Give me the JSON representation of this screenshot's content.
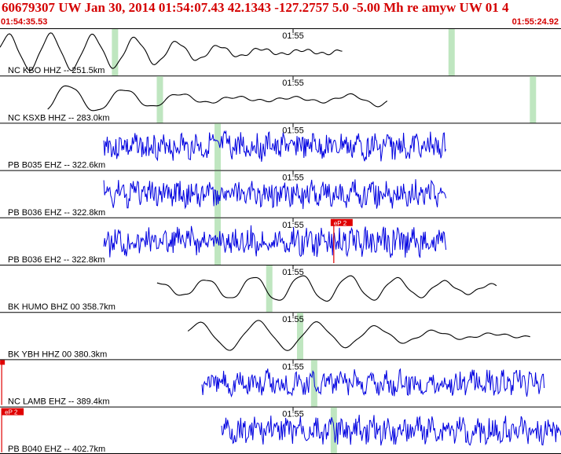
{
  "header": {
    "title": "60679307 UW Jan 30, 2014 01:54:07.43   42.1343 -127.2757  5.0 -5.00 Mh re amyw UW 01   4",
    "start_time": "01:54:35.53",
    "end_time": "01:55:24.92"
  },
  "tick_label": "01:55",
  "colors": {
    "header_text": "#d40000",
    "short_period_trace": "#0000e0",
    "long_period_trace": "#000000",
    "highlight": "#bfe6c0",
    "pick": "#e00000"
  },
  "traces": [
    {
      "label": "NC KBO HHZ -- 251.5km",
      "kind": "long",
      "start": 0.0,
      "end": 0.61,
      "period": 0.075,
      "amp": 0.75,
      "seed": 1,
      "highlights": [
        0.205,
        0.805
      ],
      "pick": null
    },
    {
      "label": "NC KSXB HHZ -- 283.0km",
      "kind": "long",
      "start": 0.085,
      "end": 0.69,
      "period": 0.1,
      "amp": 0.65,
      "seed": 2,
      "highlights": [
        0.285,
        0.95
      ],
      "pick": null
    },
    {
      "label": "PB B035 EHZ -- 322.6km",
      "kind": "short",
      "start": 0.185,
      "end": 0.795,
      "amp": 0.7,
      "seed": 3,
      "highlights": [
        0.388
      ],
      "pick": null
    },
    {
      "label": "PB B036 EHZ -- 322.8km",
      "kind": "short",
      "start": 0.185,
      "end": 0.795,
      "amp": 0.7,
      "seed": 4,
      "highlights": [
        0.388
      ],
      "pick": null
    },
    {
      "label": "PB B036 EH2 -- 322.8km",
      "kind": "short",
      "start": 0.185,
      "end": 0.795,
      "amp": 0.75,
      "seed": 5,
      "highlights": [
        0.388
      ],
      "pick": {
        "label": "eP 2",
        "pos": 0.595
      }
    },
    {
      "label": "BK HUMO BHZ 00 358.7km",
      "kind": "long",
      "start": 0.28,
      "end": 0.885,
      "period": 0.085,
      "amp": 0.55,
      "seed": 6,
      "highlights": [
        0.48
      ],
      "pick": null
    },
    {
      "label": "BK YBH HHZ 00 380.3km",
      "kind": "long",
      "start": 0.335,
      "end": 0.945,
      "period": 0.105,
      "amp": 0.6,
      "seed": 7,
      "highlights": [
        0.535
      ],
      "pick": null
    },
    {
      "label": "NC LAMB EHZ -- 389.4km",
      "kind": "short",
      "start": 0.36,
      "end": 0.97,
      "amp": 0.65,
      "seed": 8,
      "highlights": [
        0.56
      ],
      "pick": {
        "label": "",
        "pos": 0.003
      }
    },
    {
      "label": "PB B040 EHZ -- 402.7km",
      "kind": "short",
      "start": 0.395,
      "end": 1.0,
      "amp": 0.7,
      "seed": 9,
      "highlights": [
        0.595
      ],
      "pick": {
        "label": "eP 2",
        "pos": 0.003
      }
    }
  ]
}
